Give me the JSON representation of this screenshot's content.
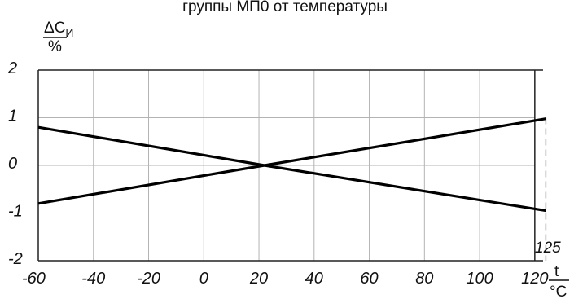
{
  "chart_data": {
    "type": "line",
    "title": "группы МП0 от температуры",
    "ylabel": {
      "symbol": "ΔC",
      "subscript": "И",
      "unit": "%"
    },
    "xlabel": {
      "symbol": "t",
      "unit": "°C"
    },
    "xlim": [
      -60,
      125
    ],
    "ylim": [
      -2,
      2
    ],
    "x_ticks": [
      "-60",
      "-40",
      "-20",
      "0",
      "20",
      "40",
      "60",
      "80",
      "100",
      "120"
    ],
    "x_tick_values": [
      -60,
      -40,
      -20,
      0,
      20,
      40,
      60,
      80,
      100,
      120
    ],
    "y_ticks": [
      "2",
      "1",
      "0",
      "-1",
      "-2"
    ],
    "y_tick_values": [
      2,
      1,
      0,
      -1,
      -2
    ],
    "grid": true,
    "series": [
      {
        "values": [
          [
            -60,
            0.8
          ],
          [
            22,
            0
          ],
          [
            124,
            -0.95
          ]
        ]
      },
      {
        "values": [
          [
            -60,
            -0.8
          ],
          [
            22,
            0
          ],
          [
            124,
            0.98
          ]
        ]
      }
    ],
    "vertical_marker": {
      "x": 124,
      "label": "125",
      "style": "dashed"
    },
    "colors": {
      "series": "#000000",
      "grid": "#b3b3b3",
      "marker": "#9a9a9a"
    }
  }
}
